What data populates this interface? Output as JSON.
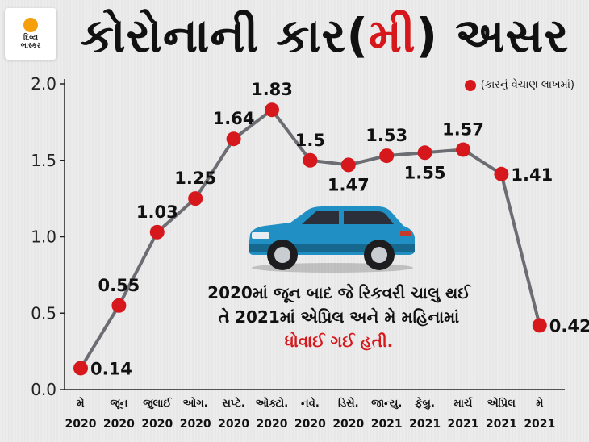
{
  "logo": {
    "line1": "દિવ્ય",
    "line2": "ભાસ્કર"
  },
  "title": {
    "part1": "કોરોનાની કાર(",
    "highlight": "મી",
    "part2": ") અસર"
  },
  "legend_label": "(કારનું વેચાણ લાખમાં)",
  "annotation": {
    "line1": "2020માં જૂન બાદ જે રિકવરી ચાલુ થઈ",
    "line2": "તે 2021માં એપ્રિલ અને મે મહિનામાં",
    "line3": "ધોવાઈ ગઈ હતી."
  },
  "colors": {
    "line": "#6b6d73",
    "point": "#d6181d",
    "accent": "#d6181d",
    "car_body": "#1f8fc4"
  },
  "icons": [
    "car-icon"
  ],
  "chart_data": {
    "type": "line",
    "title": "કોરોનાની કાર(મી) અસર",
    "categories": [
      [
        "મે",
        "2020"
      ],
      [
        "જૂન",
        "2020"
      ],
      [
        "જુલાઈ",
        "2020"
      ],
      [
        "ઓગ.",
        "2020"
      ],
      [
        "સપ્ટે.",
        "2020"
      ],
      [
        "ઓક્ટો.",
        "2020"
      ],
      [
        "નવે.",
        "2020"
      ],
      [
        "ડિસે.",
        "2020"
      ],
      [
        "જાન્યુ.",
        "2021"
      ],
      [
        "ફેબ્રુ.",
        "2021"
      ],
      [
        "માર્ચ",
        "2021"
      ],
      [
        "એપ્રિલ",
        "2021"
      ],
      [
        "મે",
        "2021"
      ]
    ],
    "values": [
      0.14,
      0.55,
      1.03,
      1.25,
      1.64,
      1.83,
      1.5,
      1.47,
      1.53,
      1.55,
      1.57,
      1.41,
      0.42
    ],
    "labels": [
      "0.14",
      "0.55",
      "1.03",
      "1.25",
      "1.64",
      "1.83",
      "1.5",
      "1.47",
      "1.53",
      "1.55",
      "1.57",
      "1.41",
      "0.42"
    ],
    "label_pos": [
      "right",
      "above",
      "above",
      "above",
      "above",
      "above",
      "above",
      "below",
      "above",
      "below",
      "above",
      "right",
      "right"
    ],
    "ylim": [
      0,
      2.0
    ],
    "yticks": [
      "0.0",
      "0.5",
      "1.0",
      "1.5",
      "2.0"
    ],
    "series": [
      {
        "name": "(કારનું વેચાણ લાખમાં)"
      }
    ],
    "legend_position": "top-right",
    "grid": false
  }
}
